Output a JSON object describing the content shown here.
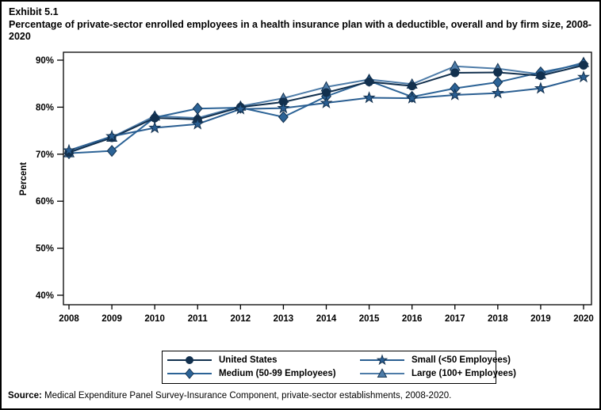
{
  "header": {
    "exhibit_label": "Exhibit 5.1",
    "title": "Percentage of private-sector enrolled employees in a health insurance plan with a deductible, overall and by firm size, 2008-2020"
  },
  "footer": {
    "source_label": "Source:",
    "source_text": " Medical Expenditure Panel Survey-Insurance Component, private-sector establishments, 2008-2020."
  },
  "chart_data": {
    "type": "line",
    "title": "Percentage of private-sector enrolled employees in a health insurance plan with a deductible, overall and by firm size, 2008-2020",
    "xlabel": "",
    "ylabel": "Percent",
    "ylim": [
      40,
      90
    ],
    "yticks": [
      40,
      50,
      60,
      70,
      80,
      90
    ],
    "ytick_labels": [
      "40%",
      "50%",
      "60%",
      "70%",
      "80%",
      "90%"
    ],
    "grid": false,
    "legend_position": "bottom-center-box",
    "categories": [
      "2008",
      "2009",
      "2010",
      "2011",
      "2012",
      "2013",
      "2014",
      "2015",
      "2016",
      "2017",
      "2018",
      "2019",
      "2020"
    ],
    "series": [
      {
        "name": "United States",
        "marker": "circle",
        "color": "#12304e",
        "values": [
          70.4,
          73.5,
          77.7,
          77.4,
          80.0,
          81.1,
          83.1,
          85.4,
          84.5,
          87.3,
          87.4,
          86.7,
          88.9
        ]
      },
      {
        "name": "Small (<50 Employees)",
        "marker": "star",
        "color": "#2a5e91",
        "values": [
          70.8,
          73.8,
          75.6,
          76.4,
          79.6,
          79.8,
          80.9,
          82.0,
          81.9,
          82.6,
          83.0,
          84.0,
          86.4
        ]
      },
      {
        "name": "Medium (50-99 Employees)",
        "marker": "diamond",
        "color": "#2c6396",
        "values": [
          70.2,
          70.7,
          77.8,
          79.7,
          79.9,
          77.9,
          82.3,
          85.6,
          82.2,
          84.0,
          85.3,
          87.4,
          89.2
        ]
      },
      {
        "name": "Large (100+ Employees)",
        "marker": "triangle",
        "color": "#4e7ca8",
        "values": [
          70.3,
          73.6,
          78.1,
          77.7,
          80.2,
          81.9,
          84.3,
          85.9,
          84.9,
          88.7,
          88.2,
          87.0,
          89.5
        ]
      }
    ],
    "draw_order": [
      3,
      2,
      0,
      1
    ],
    "marker_outline": "#12304e"
  }
}
